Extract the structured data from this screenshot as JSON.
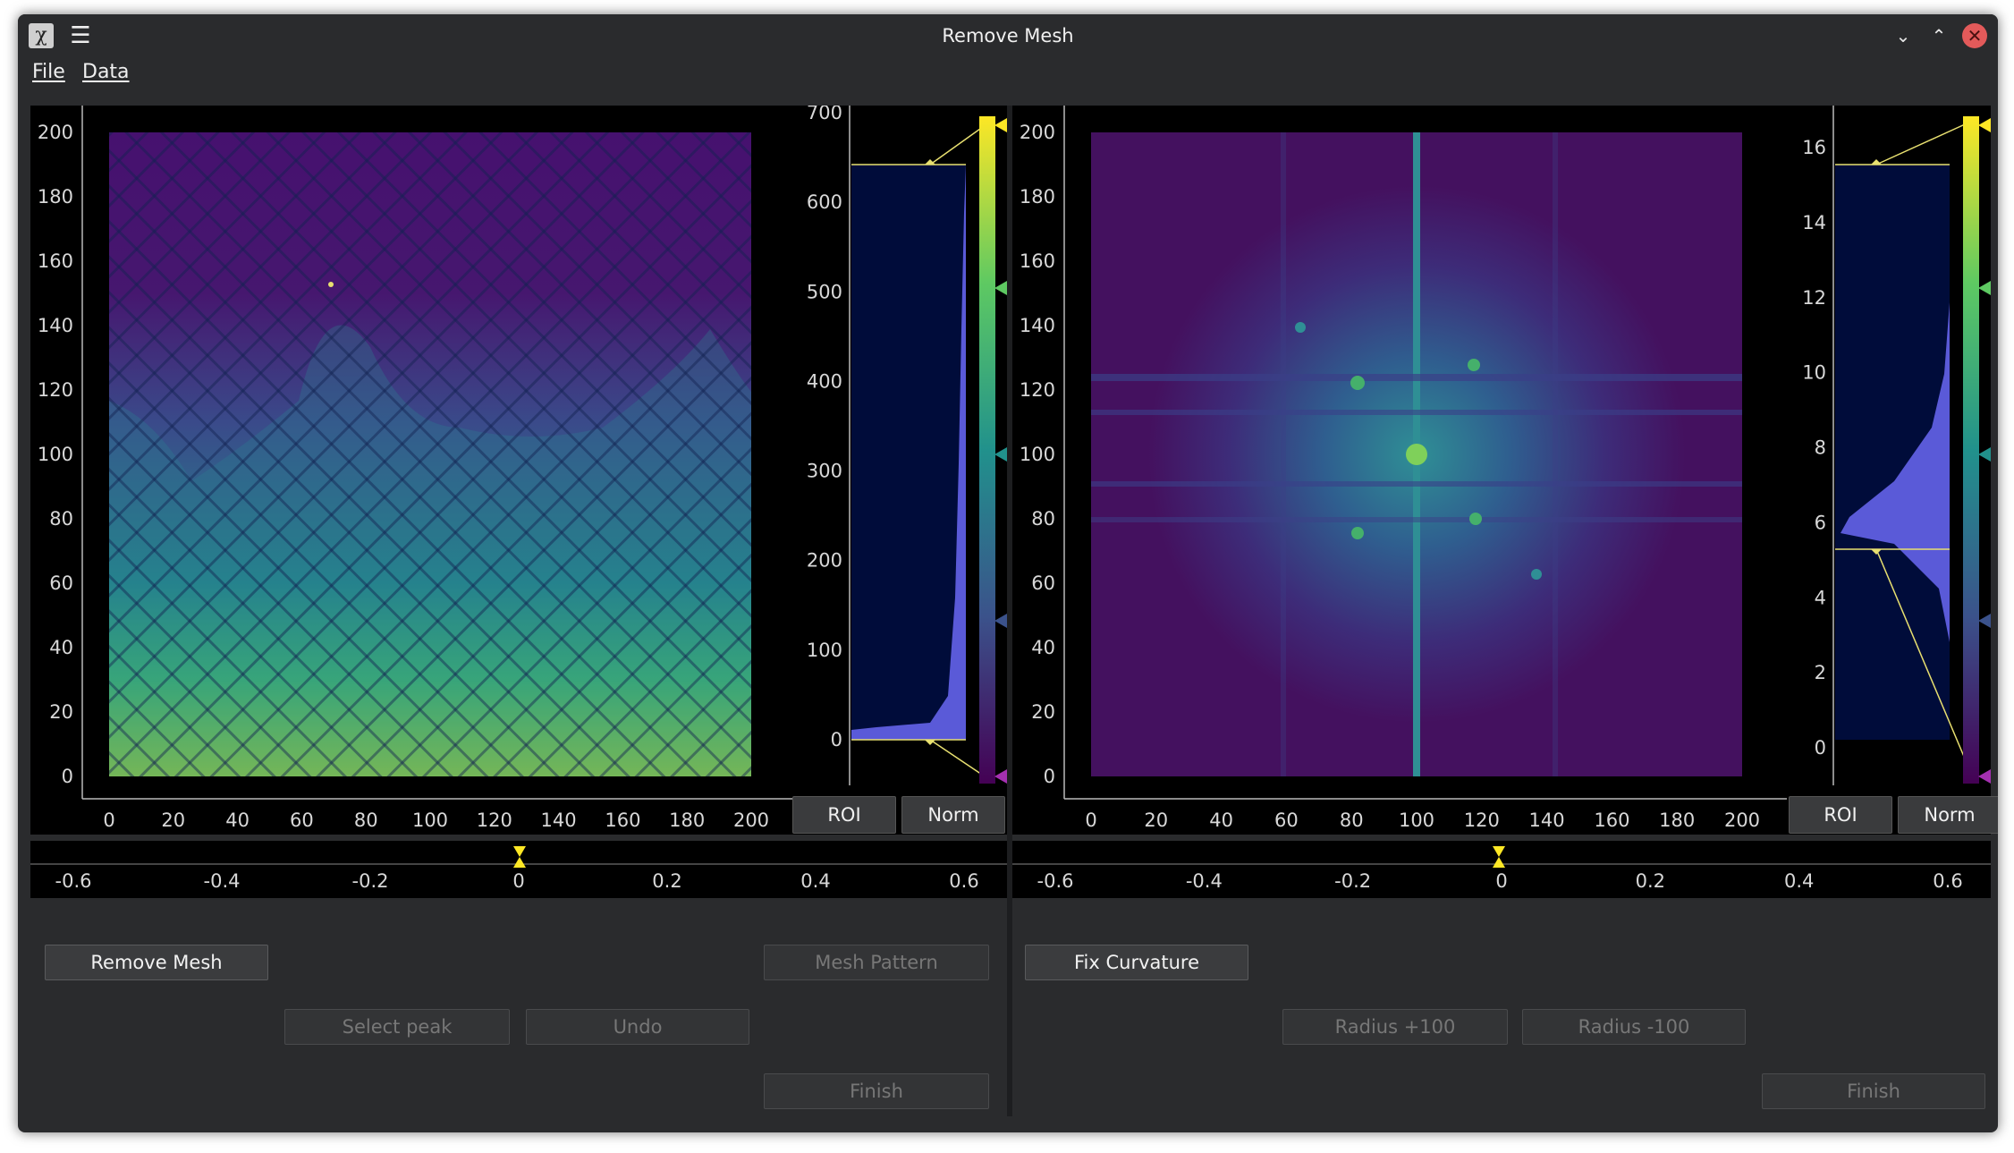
{
  "window": {
    "title": "Remove Mesh",
    "app_glyph": "χ",
    "menu_glyph": "☰",
    "min_glyph": "⌄",
    "max_glyph": "⌃",
    "close_glyph": "✕"
  },
  "menu": {
    "file": "File",
    "data": "Data"
  },
  "left": {
    "image_axes": {
      "x_ticks": [
        "0",
        "20",
        "40",
        "60",
        "80",
        "100",
        "120",
        "140",
        "160",
        "180",
        "200"
      ],
      "y_ticks": [
        "0",
        "20",
        "40",
        "60",
        "80",
        "100",
        "120",
        "140",
        "160",
        "180",
        "200"
      ]
    },
    "histogram_axis": {
      "ticks": [
        "0",
        "100",
        "200",
        "300",
        "400",
        "500",
        "600",
        "700"
      ]
    },
    "roi_label": "ROI",
    "norm_label": "Norm",
    "timeline_ticks": [
      "-0.6",
      "-0.4",
      "-0.2",
      "0",
      "0.2",
      "0.4",
      "0.6"
    ]
  },
  "right": {
    "image_axes": {
      "x_ticks": [
        "0",
        "20",
        "40",
        "60",
        "80",
        "100",
        "120",
        "140",
        "160",
        "180",
        "200"
      ],
      "y_ticks": [
        "0",
        "20",
        "40",
        "60",
        "80",
        "100",
        "120",
        "140",
        "160",
        "180",
        "200"
      ]
    },
    "histogram_axis": {
      "ticks": [
        "0",
        "2",
        "4",
        "6",
        "8",
        "10",
        "12",
        "14",
        "16"
      ]
    },
    "roi_label": "ROI",
    "norm_label": "Norm",
    "timeline_ticks": [
      "-0.6",
      "-0.4",
      "-0.2",
      "0",
      "0.2",
      "0.4",
      "0.6"
    ]
  },
  "controls_left": {
    "remove_mesh": "Remove Mesh",
    "mesh_pattern": "Mesh Pattern",
    "select_peak": "Select peak",
    "undo": "Undo",
    "finish": "Finish"
  },
  "controls_right": {
    "fix_curvature": "Fix Curvature",
    "radius_plus": "Radius +100",
    "radius_minus": "Radius -100",
    "finish": "Finish"
  },
  "colors": {
    "accent_yellow": "#fde725",
    "viridis_mid": "#21918c",
    "viridis_low": "#440154",
    "hist_fill": "#5a5ad8"
  }
}
